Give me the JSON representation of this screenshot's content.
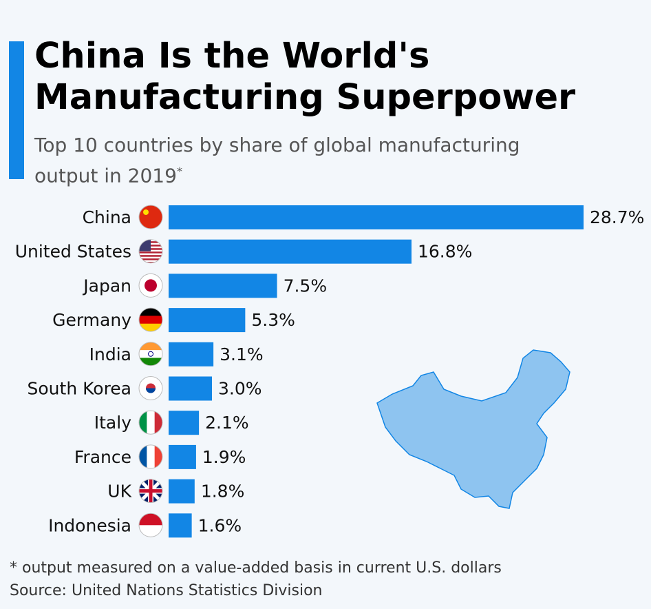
{
  "title": "China Is the World's Manufacturing Superpower",
  "subtitle": "Top 10 countries by share of global manufacturing output in 2019",
  "subtitle_mark": "*",
  "footnote": "* output measured on a value-added basis in current U.S. dollars",
  "source": "Source: United Nations Statistics Division",
  "colors": {
    "bar": "#1286e5",
    "map": "#8ec4f0",
    "accent": "#1286e5"
  },
  "chart_data": {
    "type": "bar",
    "orientation": "horizontal",
    "categories": [
      "China",
      "United States",
      "Japan",
      "Germany",
      "India",
      "South Korea",
      "Italy",
      "France",
      "UK",
      "Indonesia"
    ],
    "values": [
      28.7,
      16.8,
      7.5,
      5.3,
      3.1,
      3.0,
      2.1,
      1.9,
      1.8,
      1.6
    ],
    "labels": [
      "28.7%",
      "16.8%",
      "7.5%",
      "5.3%",
      "3.1%",
      "3.0%",
      "2.1%",
      "1.9%",
      "1.8%",
      "1.6%"
    ],
    "unit": "%",
    "xlim": [
      0,
      30
    ]
  }
}
